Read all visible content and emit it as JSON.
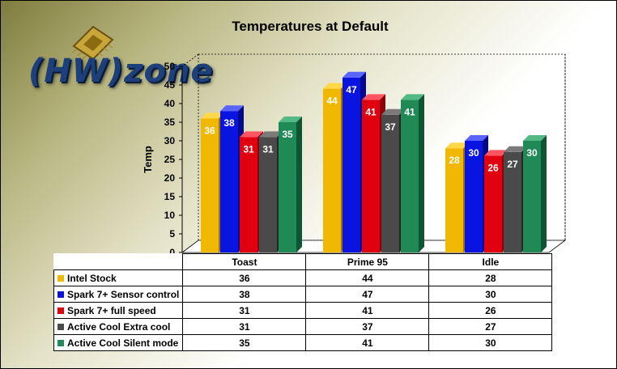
{
  "colors": {
    "series": [
      "#f0b800",
      "#0a14e0",
      "#e00010",
      "#4a4a4a",
      "#1f8a55"
    ],
    "series_dark": [
      "#9c7400",
      "#05088a",
      "#8a0008",
      "#262626",
      "#0d5533"
    ],
    "series_top": [
      "#ffd84a",
      "#5a64ff",
      "#ff5560",
      "#7a7a7a",
      "#52b985"
    ]
  },
  "logo": {
    "text": "(HW)zone",
    "icon": "cpu-chip-icon"
  },
  "chart_data": {
    "type": "bar",
    "title": "Temperatures at Default",
    "ylabel": "Temp",
    "xlabel": "",
    "ylim": [
      0,
      50
    ],
    "yticks": [
      "0",
      "5",
      "10",
      "15",
      "20",
      "25",
      "30",
      "35",
      "40",
      "45",
      "50"
    ],
    "categories": [
      "Toast",
      "Prime 95",
      "Idle"
    ],
    "series": [
      {
        "name": "Intel Stock",
        "values": [
          36,
          44,
          28
        ]
      },
      {
        "name": "Spark 7+ Sensor control",
        "values": [
          38,
          47,
          30
        ]
      },
      {
        "name": "Spark 7+ full speed",
        "values": [
          31,
          41,
          26
        ]
      },
      {
        "name": "Active Cool Extra cool",
        "values": [
          31,
          37,
          27
        ]
      },
      {
        "name": "Active Cool Silent mode",
        "values": [
          35,
          41,
          30
        ]
      }
    ],
    "grid": false,
    "legend": "data-table-below"
  }
}
